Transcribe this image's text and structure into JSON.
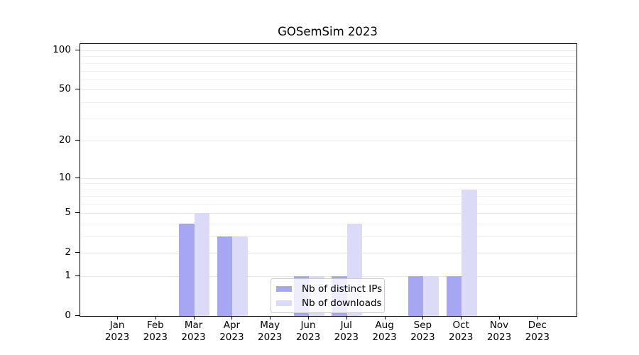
{
  "chart_data": {
    "type": "bar",
    "title": "GOSemSim 2023",
    "categories": [
      "Jan 2023",
      "Feb 2023",
      "Mar 2023",
      "Apr 2023",
      "May 2023",
      "Jun 2023",
      "Jul 2023",
      "Aug 2023",
      "Sep 2023",
      "Oct 2023",
      "Nov 2023",
      "Dec 2023"
    ],
    "series": [
      {
        "name": "Nb of distinct IPs",
        "color": "#a6a6f2",
        "values": [
          0,
          0,
          4,
          3,
          0,
          1,
          1,
          0,
          1,
          1,
          0,
          0
        ]
      },
      {
        "name": "Nb of downloads",
        "color": "#dbdbf8",
        "values": [
          0,
          0,
          5,
          3,
          0,
          1,
          4,
          0,
          1,
          8,
          0,
          0
        ]
      }
    ],
    "xlabel": "",
    "ylabel": "",
    "yscale": "log10(1+x)",
    "yticks": [
      0,
      1,
      2,
      5,
      10,
      20,
      50,
      100
    ],
    "minor_gridlines": [
      3,
      4,
      6,
      7,
      8,
      9,
      30,
      40,
      60,
      70,
      80,
      90
    ],
    "ylim": [
      0,
      110
    ],
    "grid": true,
    "legend_position": "lower center"
  },
  "colors": {
    "grid_major": "#e6e6e6",
    "grid_minor": "#f1f1f1",
    "axis": "#000000",
    "background": "#ffffff",
    "legend_border": "#cccccc"
  }
}
